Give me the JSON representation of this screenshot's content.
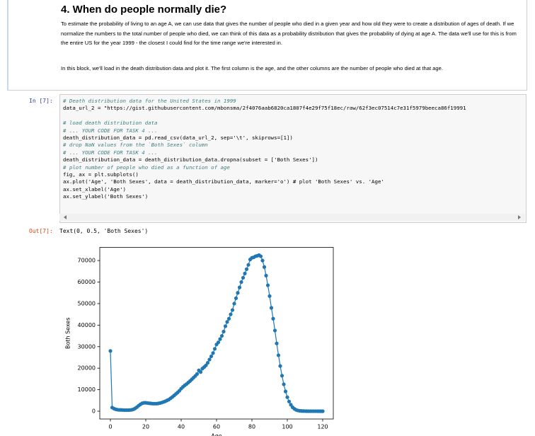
{
  "markdown": {
    "heading": "4. When do people normally die?",
    "paragraphs": [
      "To estimate the probability of living to an age A, we can use data that gives the number of people who died in a given year and how old they were to create a distribution of ages of death. If we normalize the numbers to the total number of people who died, we can think of this data as a probability distribution that gives the probability of dying at age A. The data we'll use for this is from the entire US for the year 1999 - the closest I could find for the time range we're interested in.",
      "In this block, we'll load in the death distribution data and plot it. The first column is the age, and the other columns are the number of people who died at that age."
    ]
  },
  "code_cell": {
    "prompt": "In [7]:",
    "blocks": [
      [
        "# Death distribution data for the United States in 1999",
        "data_url_2 = \"https://gist.githubusercontent.com/mbonsma/2f4076aab6820ca1807f4e29f75f18ec/raw/62f3ec07514c7e31f5979beeca86f19991"
      ],
      [
        "# load death distribution data",
        "# ... YOUR CODE FOR TASK 4 ...",
        "death_distribution_data = pd.read_csv(data_url_2, sep='\\t', skiprows=[1])",
        "# drop NaN values from the `Both Sexes` column",
        "# ... YOUR CODE FOR TASK 4 ...",
        "death_distribution_data = death_distribution_data.dropna(subset = ['Both Sexes'])",
        "# plot number of people who died as a function of age",
        "fig, ax = plt.subplots()",
        "ax.plot('Age', 'Both Sexes', data = death_distribution_data, marker='o') # plot 'Both Sexes' vs. 'Age'",
        "ax.set_xlabel('Age')",
        "ax.set_ylabel('Both Sexes')"
      ]
    ]
  },
  "output": {
    "prompt": "Out[7]:",
    "text": "Text(0, 0.5, 'Both Sexes')"
  },
  "chart_data": {
    "type": "line",
    "xlabel": "Age",
    "ylabel": "Both Sexes",
    "color": "#1f77b4",
    "marker": "o",
    "x": [
      0,
      1,
      2,
      3,
      4,
      5,
      6,
      7,
      8,
      9,
      10,
      11,
      12,
      13,
      14,
      15,
      16,
      17,
      18,
      19,
      20,
      21,
      22,
      23,
      24,
      25,
      26,
      27,
      28,
      29,
      30,
      31,
      32,
      33,
      34,
      35,
      36,
      37,
      38,
      39,
      40,
      41,
      42,
      43,
      44,
      45,
      46,
      47,
      48,
      49,
      50,
      51,
      52,
      53,
      54,
      55,
      56,
      57,
      58,
      59,
      60,
      61,
      62,
      63,
      64,
      65,
      66,
      67,
      68,
      69,
      70,
      71,
      72,
      73,
      74,
      75,
      76,
      77,
      78,
      79,
      80,
      81,
      82,
      83,
      84,
      85,
      86,
      87,
      88,
      89,
      90,
      91,
      92,
      93,
      94,
      95,
      96,
      97,
      98,
      99,
      100,
      101,
      102,
      103,
      104,
      105,
      106,
      107,
      108,
      109,
      110,
      111,
      112,
      113,
      114,
      115,
      116,
      117,
      118,
      119,
      120
    ],
    "values": [
      28000,
      1700,
      1200,
      900,
      700,
      600,
      600,
      550,
      500,
      500,
      500,
      550,
      650,
      900,
      1300,
      1900,
      2600,
      3200,
      3700,
      3900,
      3900,
      3800,
      3700,
      3600,
      3500,
      3500,
      3500,
      3600,
      3800,
      4000,
      4300,
      4600,
      5000,
      5400,
      6000,
      6600,
      7300,
      8000,
      8700,
      9500,
      10500,
      11300,
      12000,
      12600,
      13300,
      14000,
      14800,
      15600,
      16400,
      17300,
      19000,
      18200,
      19800,
      20500,
      21300,
      22500,
      24000,
      25500,
      27000,
      29000,
      31000,
      32000,
      33500,
      35000,
      37000,
      39500,
      41500,
      43000,
      45000,
      47000,
      50000,
      52500,
      55000,
      57500,
      60000,
      62000,
      64000,
      66000,
      68000,
      70500,
      71300,
      71500,
      72000,
      72200,
      72500,
      72000,
      70000,
      67000,
      63000,
      58500,
      53500,
      48000,
      43000,
      37500,
      31500,
      26000,
      21000,
      16500,
      12500,
      9200,
      6500,
      4500,
      3000,
      1800,
      1100,
      600,
      350,
      200,
      120,
      80,
      50,
      30,
      20,
      15,
      10,
      8,
      5,
      3,
      2,
      1,
      0
    ],
    "xlim": [
      -6,
      126
    ],
    "ylim": [
      -3625,
      76125
    ],
    "xticks": [
      0,
      20,
      40,
      60,
      80,
      100,
      120
    ],
    "yticks": [
      0,
      10000,
      20000,
      30000,
      40000,
      50000,
      60000,
      70000
    ]
  }
}
